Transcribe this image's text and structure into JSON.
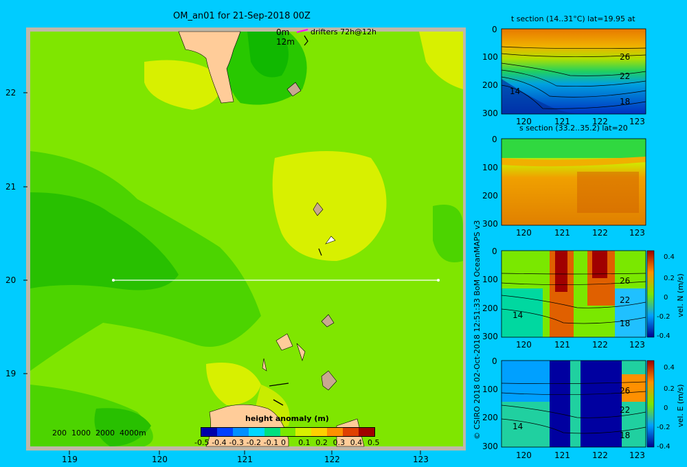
{
  "map": {
    "title": "OM_an01 for 21-Sep-2018 00Z",
    "drifters": {
      "label_0m": "0m",
      "label_12m": "12m",
      "legend": "drifters 72h@12h"
    },
    "lat_ticks": [
      "22",
      "21",
      "20",
      "19"
    ],
    "lon_ticks": [
      "119",
      "120",
      "121",
      "122",
      "123"
    ],
    "depth_legend": "200  1000  2000  4000m",
    "colorbar": {
      "title": "height anomaly (m)",
      "ticks": [
        "-0.5",
        "-0.4",
        "-0.3",
        "-0.2",
        "-0.1",
        "0",
        "0.1",
        "0.2",
        "0.3",
        "0.4",
        "0.5"
      ],
      "colors": [
        "#0000aa",
        "#0040ff",
        "#0090ff",
        "#00d8ff",
        "#00e080",
        "#7ae800",
        "#d8f000",
        "#ffd000",
        "#ff9000",
        "#e04000",
        "#a00000"
      ]
    },
    "section_line": {
      "lat": "20",
      "lon_from": "119.5",
      "lon_to": "123.2"
    }
  },
  "panels": [
    {
      "title": "t section (14..31°C) lat=19.95 at",
      "yticks": [
        "0",
        "100",
        "200",
        "300"
      ],
      "xticks": [
        "120",
        "121",
        "122",
        "123"
      ],
      "contour_labels": [
        "26",
        "22",
        "18",
        "14"
      ]
    },
    {
      "title": "s section (33.2..35.2) lat=20",
      "yticks": [
        "0",
        "100",
        "200",
        "300"
      ],
      "xticks": [
        "120",
        "121",
        "122",
        "123"
      ]
    },
    {
      "title": "",
      "yticks": [
        "0",
        "100",
        "200",
        "300"
      ],
      "xticks": [
        "120",
        "121",
        "122",
        "123"
      ],
      "contour_labels": [
        "26",
        "22",
        "18",
        "14"
      ],
      "colorbar": {
        "label": "vel. N (m/s)",
        "ticks": [
          "0.4",
          "0.2",
          "0",
          "-0.2",
          "-0.4"
        ]
      }
    },
    {
      "title": "",
      "yticks": [
        "0",
        "100",
        "200",
        "300"
      ],
      "xticks": [
        "120",
        "121",
        "122",
        "123"
      ],
      "contour_labels": [
        "26",
        "22",
        "18",
        "14"
      ],
      "colorbar": {
        "label": "vel. E (m/s)",
        "ticks": [
          "0.4",
          "0.2",
          "0",
          "-0.2",
          "-0.4"
        ]
      }
    }
  ],
  "credit": "© CSIRO 2018   02-Oct-2018 12:51:33 BoM OceanMAPS v3"
}
